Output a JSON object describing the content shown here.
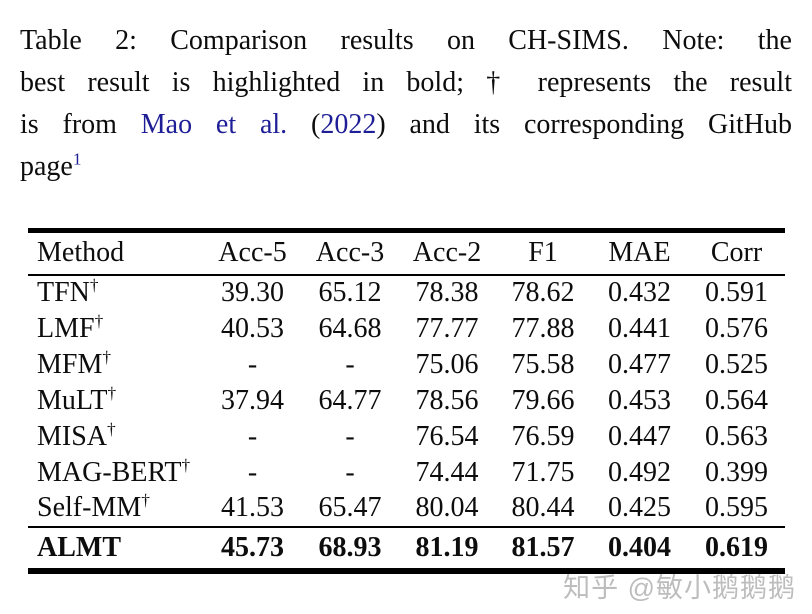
{
  "colors": {
    "link_blue": "#1e1e96",
    "text_black": "#0d0d0d",
    "rule_black": "#000000",
    "watermark_gray": "#bdbdbd",
    "background": "#ffffff"
  },
  "caption": {
    "line1": "Table 2: Comparison results on CH-SIMS. Note: the",
    "line2": "best result is highlighted in bold; † represents the result",
    "line3": {
      "pre": "is from",
      "citation_name": "Mao et al.",
      "open_paren": "(",
      "citation_year": "2022",
      "close_paren": ")",
      "post": "and its corresponding GitHub"
    },
    "line4": {
      "word": "page",
      "footnote_mark": "1"
    }
  },
  "table": {
    "columns": [
      "Method",
      "Acc-5",
      "Acc-3",
      "Acc-2",
      "F1",
      "MAE",
      "Corr"
    ],
    "rows": [
      {
        "method": "TFN",
        "dagger": "†",
        "bold": false,
        "values": [
          "39.30",
          "65.12",
          "78.38",
          "78.62",
          "0.432",
          "0.591"
        ]
      },
      {
        "method": "LMF",
        "dagger": "†",
        "bold": false,
        "values": [
          "40.53",
          "64.68",
          "77.77",
          "77.88",
          "0.441",
          "0.576"
        ]
      },
      {
        "method": "MFM",
        "dagger": "†",
        "bold": false,
        "values": [
          "-",
          "-",
          "75.06",
          "75.58",
          "0.477",
          "0.525"
        ]
      },
      {
        "method": "MuLT",
        "dagger": "†",
        "bold": false,
        "values": [
          "37.94",
          "64.77",
          "78.56",
          "79.66",
          "0.453",
          "0.564"
        ]
      },
      {
        "method": "MISA",
        "dagger": "†",
        "bold": false,
        "values": [
          "-",
          "-",
          "76.54",
          "76.59",
          "0.447",
          "0.563"
        ]
      },
      {
        "method": "MAG-BERT",
        "dagger": "†",
        "bold": false,
        "values": [
          "-",
          "-",
          "74.44",
          "71.75",
          "0.492",
          "0.399"
        ]
      },
      {
        "method": "Self-MM",
        "dagger": "†",
        "bold": false,
        "values": [
          "41.53",
          "65.47",
          "80.04",
          "80.44",
          "0.425",
          "0.595"
        ]
      },
      {
        "method": "ALMT",
        "dagger": "",
        "bold": true,
        "values": [
          "45.73",
          "68.93",
          "81.19",
          "81.57",
          "0.404",
          "0.619"
        ]
      }
    ]
  },
  "watermark": {
    "text": "知乎 @敏小鹅鹅鹅"
  }
}
